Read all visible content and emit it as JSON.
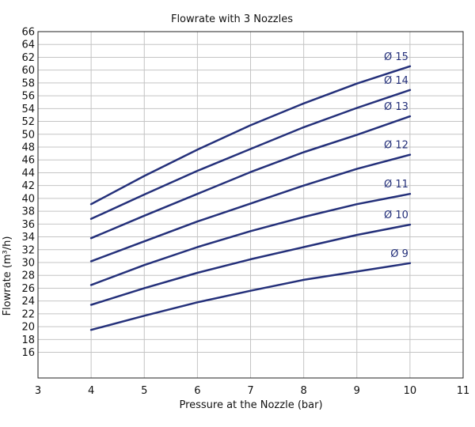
{
  "chart_data": {
    "type": "line",
    "title": "Flowrate with 3 Nozzles",
    "xlabel": "Pressure at the Nozzle (bar)",
    "ylabel": "Flowrate (m³/h)",
    "xlim": [
      3,
      11
    ],
    "ylim": [
      12,
      66
    ],
    "x_ticks": [
      "3",
      "4",
      "5",
      "6",
      "7",
      "8",
      "9",
      "10",
      "11"
    ],
    "y_ticks": [
      "16",
      "18",
      "20",
      "22",
      "24",
      "26",
      "28",
      "30",
      "32",
      "34",
      "36",
      "38",
      "40",
      "42",
      "44",
      "46",
      "48",
      "50",
      "52",
      "54",
      "56",
      "58",
      "60",
      "62",
      "64",
      "66"
    ],
    "grid": true,
    "line_color": "#24307a",
    "grid_color": "#c4c4c4",
    "x": [
      4,
      5,
      6,
      7,
      8,
      9,
      10
    ],
    "series": [
      {
        "name": "Ø 9",
        "values": [
          19.5,
          21.7,
          23.8,
          25.6,
          27.3,
          28.6,
          29.9
        ]
      },
      {
        "name": "Ø 10",
        "values": [
          23.4,
          26.0,
          28.4,
          30.5,
          32.4,
          34.3,
          35.9
        ]
      },
      {
        "name": "Ø 11",
        "values": [
          26.5,
          29.6,
          32.4,
          34.9,
          37.1,
          39.1,
          40.7
        ]
      },
      {
        "name": "Ø 12",
        "values": [
          30.2,
          33.3,
          36.4,
          39.2,
          42.0,
          44.6,
          46.8
        ]
      },
      {
        "name": "Ø 13",
        "values": [
          33.8,
          37.3,
          40.7,
          44.1,
          47.2,
          49.9,
          52.8
        ]
      },
      {
        "name": "Ø 14",
        "values": [
          36.8,
          40.6,
          44.3,
          47.7,
          51.1,
          54.1,
          56.9
        ]
      },
      {
        "name": "Ø 15",
        "values": [
          39.1,
          43.5,
          47.6,
          51.4,
          54.8,
          57.9,
          60.6
        ]
      }
    ]
  }
}
